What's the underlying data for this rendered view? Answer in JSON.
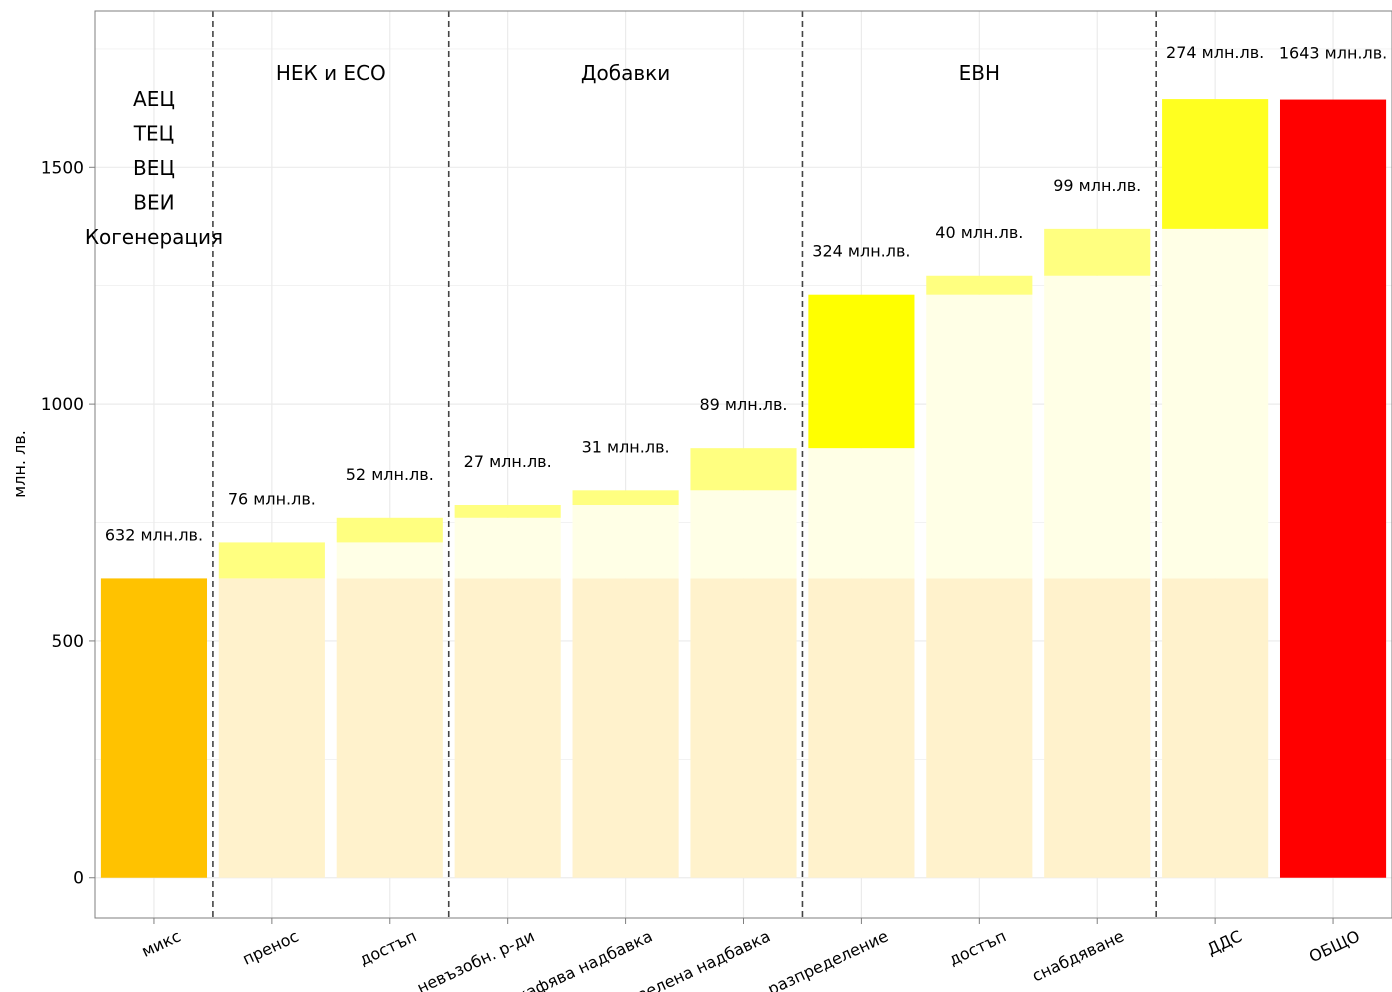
{
  "chart_data": {
    "type": "bar",
    "title": "",
    "xlabel": "",
    "ylabel": "млн. лв.",
    "ylim": [
      -85,
      1830
    ],
    "yticks": [
      0,
      500,
      1000,
      1500
    ],
    "grid": true,
    "categories": [
      "микс",
      "пренос",
      "достъп",
      "невъзобн. р-ди",
      "кафява надбавка",
      "зелена надбавка",
      "разпределение",
      "достъп",
      "снабдяване",
      "ДДС",
      "ОБЩО"
    ],
    "values": [
      632,
      76,
      52,
      27,
      31,
      89,
      324,
      40,
      99,
      274,
      1643
    ],
    "bar_labels": [
      "632 млн.лв.",
      "76 млн.лв.",
      "52 млн.лв.",
      "27 млн.лв.",
      "31 млн.лв.",
      "89 млн.лв.",
      "324 млн.лв.",
      "40 млн.лв.",
      "99 млн.лв.",
      "274 млн.лв.",
      "1643 млн.лв."
    ],
    "bar_colors": [
      "#FFC200",
      "#FFFF80",
      "#FFFF80",
      "#FFFF80",
      "#FFFF80",
      "#FFFF80",
      "#FFFF00",
      "#FFFF80",
      "#FFFF80",
      "#FFFF20",
      "#FF0000"
    ],
    "groups": [
      {
        "label": "НЕК и ЕСО",
        "from": 1,
        "to": 2
      },
      {
        "label": "Добавки",
        "from": 3,
        "to": 5
      },
      {
        "label": "ЕВН",
        "from": 6,
        "to": 8
      }
    ],
    "separators_after": [
      0,
      2,
      5,
      8
    ],
    "generation_sources": [
      "АЕЦ",
      "ТЕЦ",
      "ВЕЦ",
      "ВЕИ",
      "Когенерация"
    ]
  },
  "colors": {
    "ghost_base": "#FFF2CC",
    "ghost_stack": "#FFFFE6",
    "grid": "#EBEBEB",
    "axis": "#7F7F7F",
    "separator": "#444444"
  }
}
